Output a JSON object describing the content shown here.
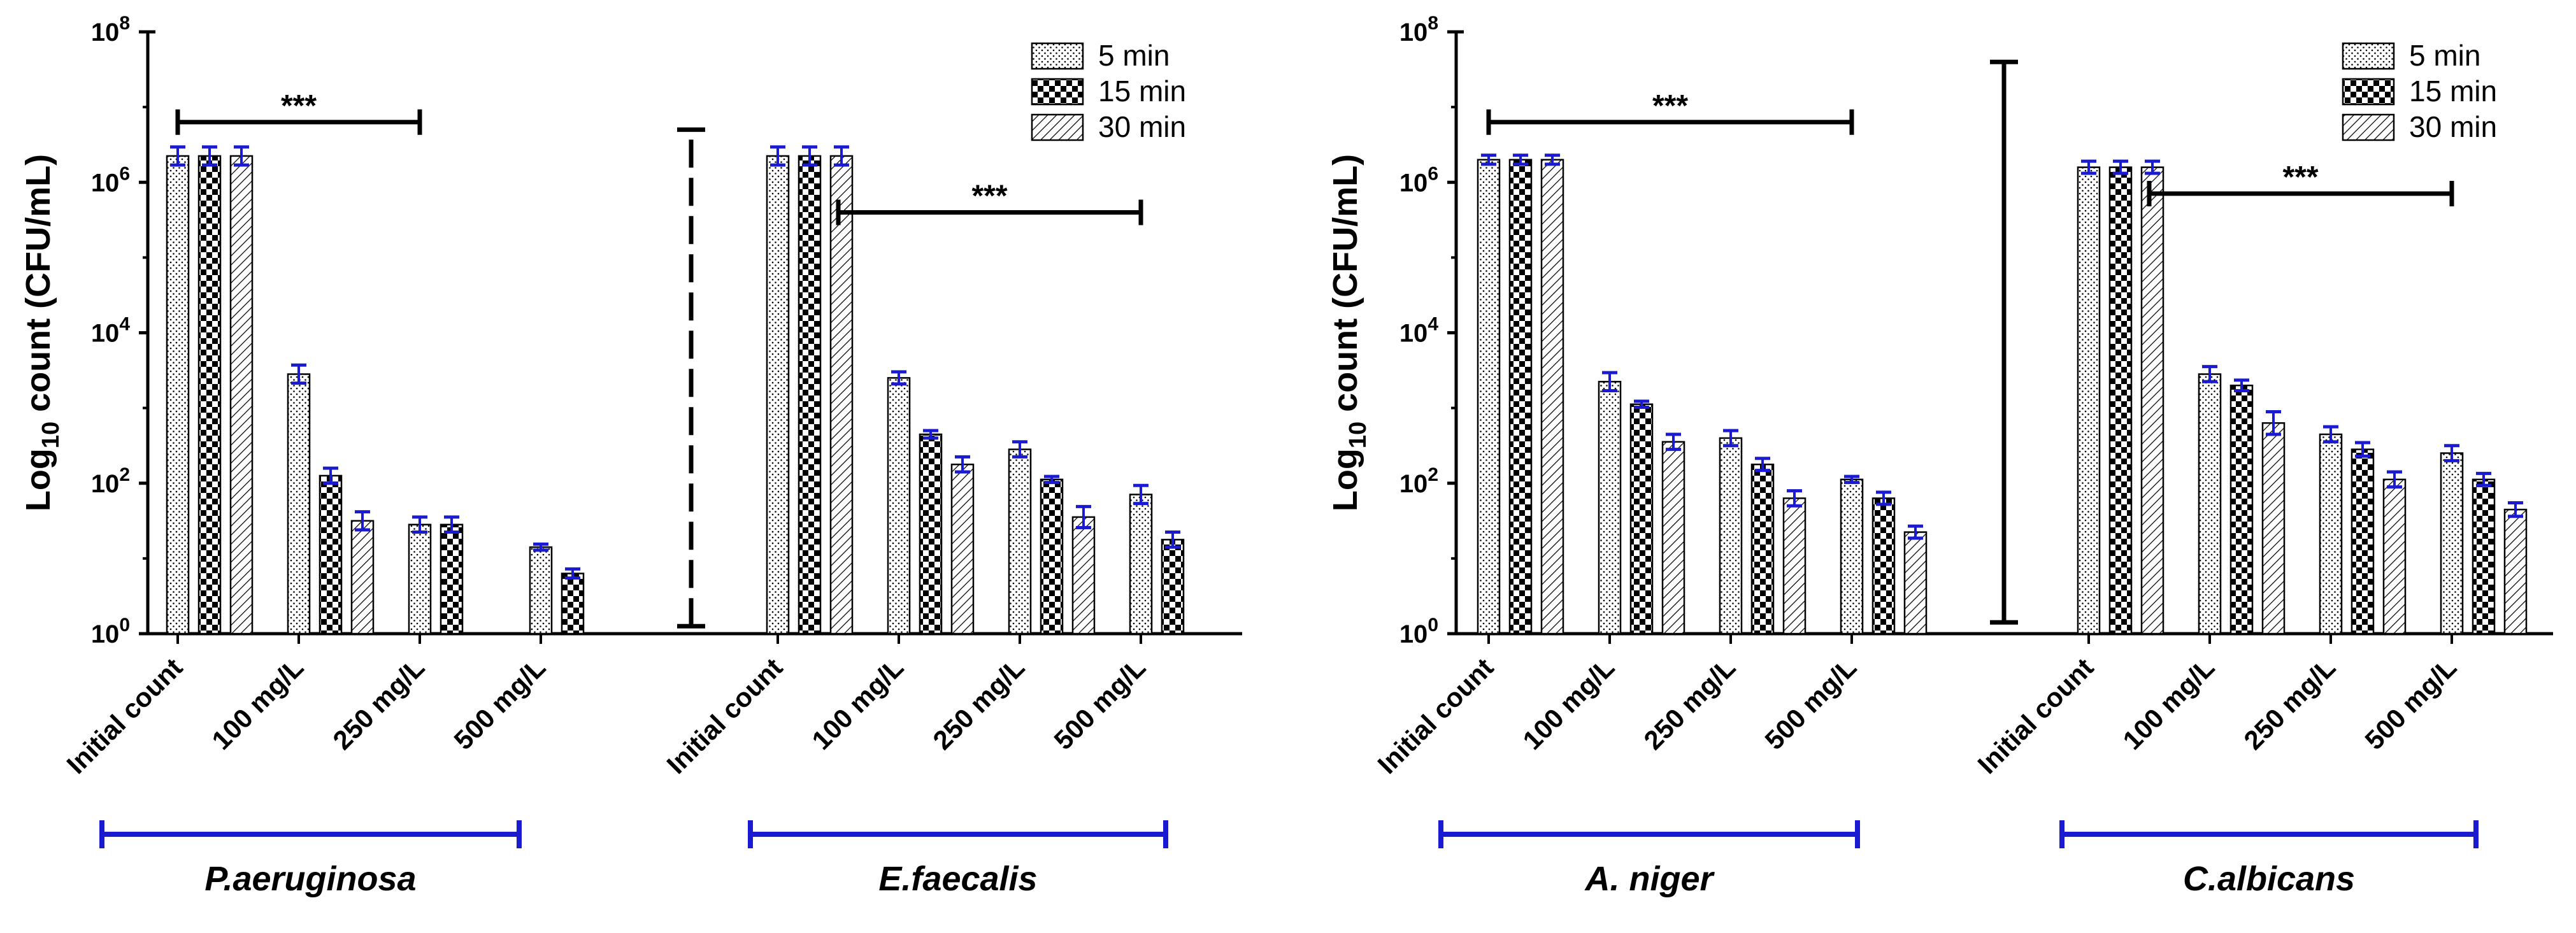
{
  "figure": {
    "type": "bar",
    "scale": "log10"
  },
  "colors": {
    "bracket_blue": "#1a1ad0",
    "error_bar": "#1a1ad0",
    "ink": "#000000"
  },
  "chart_data": [
    {
      "type": "bar",
      "panel": "left",
      "ylabel_main": "Log",
      "ylabel_sub": "10",
      "ylabel_rest": " count (CFU/mL)",
      "ylim_exp": [
        0,
        8
      ],
      "yticks": [
        {
          "base": "10",
          "exp": "0",
          "value": 0
        },
        {
          "base": "10",
          "exp": "2",
          "value": 2
        },
        {
          "base": "10",
          "exp": "4",
          "value": 4
        },
        {
          "base": "10",
          "exp": "6",
          "value": 6
        },
        {
          "base": "10",
          "exp": "8",
          "value": 8
        }
      ],
      "legend": {
        "position": "top-right",
        "entries": [
          {
            "label": "5 min",
            "pattern": "dots"
          },
          {
            "label": "15 min",
            "pattern": "checker"
          },
          {
            "label": "30  min",
            "pattern": "hatch"
          }
        ]
      },
      "separator": {
        "style": "dashed",
        "from_exp": 0.1,
        "to_exp": 6.7
      },
      "groups": [
        {
          "organism": "P.aeruginosa",
          "categories": [
            "Initial count",
            "100 mg/L",
            "250 mg/L",
            "500 mg/L"
          ],
          "series": [
            {
              "name": "5 min",
              "values": [
                6.35,
                3.45,
                1.45,
                1.15
              ],
              "errors": [
                0.12,
                0.12,
                0.1,
                0.04
              ]
            },
            {
              "name": "15 min",
              "values": [
                6.35,
                2.1,
                1.45,
                0.8
              ],
              "errors": [
                0.12,
                0.1,
                0.1,
                0.06
              ]
            },
            {
              "name": "30  min",
              "values": [
                6.35,
                1.5,
                null,
                null
              ],
              "errors": [
                0.12,
                0.12,
                null,
                null
              ]
            }
          ],
          "significance": {
            "label": "***",
            "from_index": 0,
            "to_index": 2,
            "y_exp": 6.8
          }
        },
        {
          "organism": "E.faecalis",
          "categories": [
            "Initial count",
            "100 mg/L",
            "250 mg/L",
            "500 mg/L"
          ],
          "series": [
            {
              "name": "5 min",
              "values": [
                6.35,
                3.4,
                2.45,
                1.85
              ],
              "errors": [
                0.12,
                0.08,
                0.1,
                0.12
              ]
            },
            {
              "name": "15 min",
              "values": [
                6.35,
                2.65,
                2.05,
                1.25
              ],
              "errors": [
                0.12,
                0.05,
                0.04,
                0.1
              ]
            },
            {
              "name": "30  min",
              "values": [
                6.35,
                2.25,
                1.55,
                null
              ],
              "errors": [
                0.12,
                0.1,
                0.14,
                null
              ]
            }
          ],
          "significance": {
            "label": "***",
            "from_index": 0.5,
            "to_index": 3,
            "y_exp": 5.6
          }
        }
      ]
    },
    {
      "type": "bar",
      "panel": "right",
      "ylabel_main": "Log",
      "ylabel_sub": "10",
      "ylabel_rest": " count (CFU/mL)",
      "ylim_exp": [
        0,
        8
      ],
      "yticks": [
        {
          "base": "10",
          "exp": "0",
          "value": 0
        },
        {
          "base": "10",
          "exp": "2",
          "value": 2
        },
        {
          "base": "10",
          "exp": "4",
          "value": 4
        },
        {
          "base": "10",
          "exp": "6",
          "value": 6
        },
        {
          "base": "10",
          "exp": "8",
          "value": 8
        }
      ],
      "legend": {
        "position": "top-right",
        "entries": [
          {
            "label": "5 min",
            "pattern": "dots"
          },
          {
            "label": "15 min",
            "pattern": "checker"
          },
          {
            "label": "30  min",
            "pattern": "hatch"
          }
        ]
      },
      "separator": {
        "style": "solid",
        "from_exp": 0.15,
        "to_exp": 7.6
      },
      "groups": [
        {
          "organism": "A. niger",
          "categories": [
            "Initial count",
            "100 mg/L",
            "250 mg/L",
            "500 mg/L"
          ],
          "series": [
            {
              "name": "5 min",
              "values": [
                6.3,
                3.35,
                2.6,
                2.05
              ],
              "errors": [
                0.06,
                0.12,
                0.1,
                0.04
              ]
            },
            {
              "name": "15 min",
              "values": [
                6.3,
                3.05,
                2.25,
                1.8
              ],
              "errors": [
                0.06,
                0.04,
                0.08,
                0.08
              ]
            },
            {
              "name": "30  min",
              "values": [
                6.3,
                2.55,
                1.8,
                1.35
              ],
              "errors": [
                0.06,
                0.1,
                0.1,
                0.08
              ]
            }
          ],
          "significance": {
            "label": "***",
            "from_index": 0,
            "to_index": 3,
            "y_exp": 6.8
          }
        },
        {
          "organism": "C.albicans",
          "categories": [
            "Initial count",
            "100 mg/L",
            "250 mg/L",
            "500 mg/L"
          ],
          "series": [
            {
              "name": "5 min",
              "values": [
                6.2,
                3.45,
                2.65,
                2.4
              ],
              "errors": [
                0.08,
                0.1,
                0.1,
                0.1
              ]
            },
            {
              "name": "15 min",
              "values": [
                6.2,
                3.3,
                2.45,
                2.05
              ],
              "errors": [
                0.08,
                0.07,
                0.09,
                0.08
              ]
            },
            {
              "name": "30  min",
              "values": [
                6.2,
                2.8,
                2.05,
                1.65
              ],
              "errors": [
                0.08,
                0.15,
                0.1,
                0.09
              ]
            }
          ],
          "significance": {
            "label": "***",
            "from_index": 0.5,
            "to_index": 3,
            "y_exp": 5.85
          }
        }
      ]
    }
  ]
}
